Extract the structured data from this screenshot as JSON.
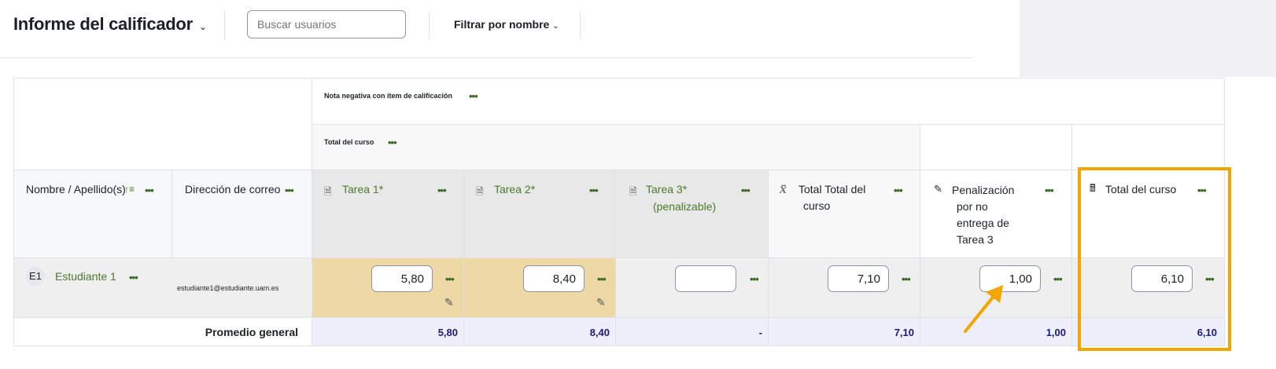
{
  "header": {
    "title": "Informe del calificador",
    "search_placeholder": "Buscar usuarios",
    "filter_label": "Filtrar por nombre"
  },
  "groups": {
    "top": "Nota negativa con ítem de calificación",
    "course_total": "Total del curso"
  },
  "columns": {
    "name": "Nombre / Apellido(s)",
    "email": "Dirección de correo",
    "tarea1": "Tarea 1*",
    "tarea2": "Tarea 2*",
    "tarea3": "Tarea 3*",
    "tarea3_sub": "(penalizable)",
    "total_total": "Total Total del",
    "total_total_2": "curso",
    "penal": "Penalización",
    "penal_2": "por no",
    "penal_3": "entrega de",
    "penal_4": "Tarea 3",
    "course_total": "Total del curso"
  },
  "student": {
    "initials": "E1",
    "name": "Estudiante 1",
    "email": "estudiante1@estudiante.uam.es",
    "tarea1": "5,80",
    "tarea2": "8,40",
    "tarea3": "",
    "total_total": "7,10",
    "penal": "1,00",
    "course_total": "6,10"
  },
  "average": {
    "label": "Promedio general",
    "tarea1": "5,80",
    "tarea2": "8,40",
    "tarea3": "-",
    "total_total": "7,10",
    "penal": "1,00",
    "course_total": "6,10"
  },
  "colors": {
    "highlight": "#f5a500",
    "overridden": "#eed9a6",
    "average_bg": "#efeffb",
    "link": "#4a7a2a"
  }
}
